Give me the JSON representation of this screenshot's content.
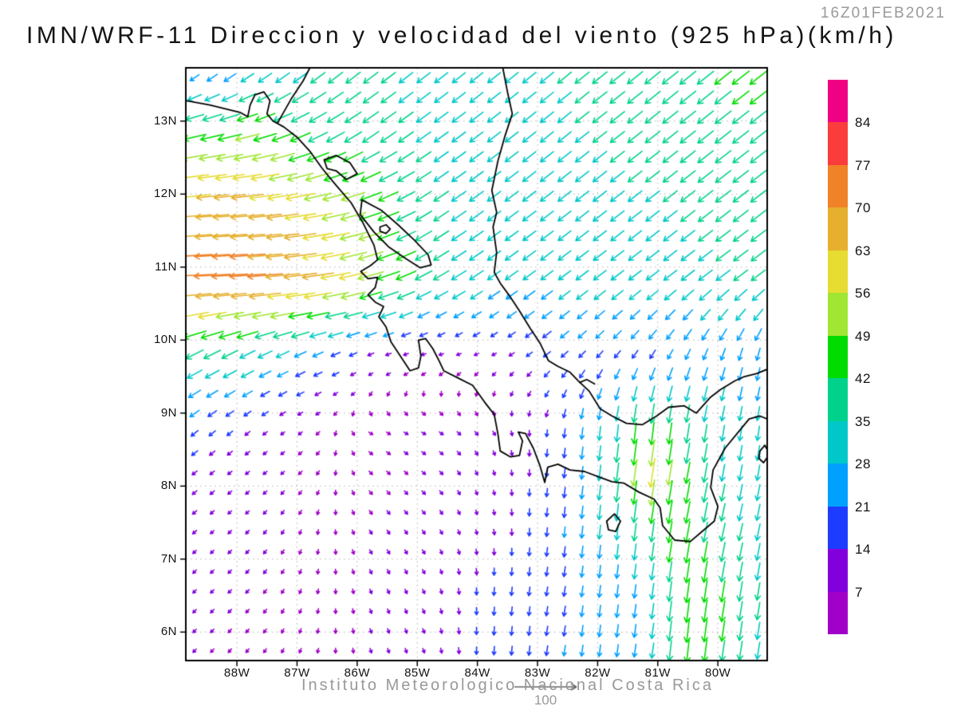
{
  "header": {
    "timestamp": "16Z01FEB2021",
    "title": "IMN/WRF-11 Direccion y velocidad del viento (925 hPa)(km/h)"
  },
  "footer": {
    "credit": "Instituto Meteorologico Nacional Costa Rica",
    "reference_vector": {
      "label": "100",
      "speed_kmh": 100
    }
  },
  "axes": {
    "lat_ticks": [
      {
        "value": 13,
        "label": "13N"
      },
      {
        "value": 12,
        "label": "12N"
      },
      {
        "value": 11,
        "label": "11N"
      },
      {
        "value": 10,
        "label": "10N"
      },
      {
        "value": 9,
        "label": "9N"
      },
      {
        "value": 8,
        "label": "8N"
      },
      {
        "value": 7,
        "label": "7N"
      },
      {
        "value": 6,
        "label": "6N"
      }
    ],
    "lon_ticks": [
      {
        "value": -88,
        "label": "88W"
      },
      {
        "value": -87,
        "label": "87W"
      },
      {
        "value": -86,
        "label": "86W"
      },
      {
        "value": -85,
        "label": "85W"
      },
      {
        "value": -84,
        "label": "84W"
      },
      {
        "value": -83,
        "label": "83W"
      },
      {
        "value": -82,
        "label": "82W"
      },
      {
        "value": -81,
        "label": "81W"
      },
      {
        "value": -80,
        "label": "80W"
      }
    ]
  },
  "colorbar": {
    "levels": [
      84,
      77,
      70,
      63,
      56,
      49,
      42,
      35,
      28,
      21,
      14,
      7
    ],
    "colors_top_to_bottom": [
      "#F00082",
      "#FA3C3C",
      "#F08228",
      "#E6AF2D",
      "#E6DC32",
      "#A0E632",
      "#00DC00",
      "#00D28C",
      "#00C8C8",
      "#00A0FF",
      "#1E3CFF",
      "#8200DC",
      "#A000C8"
    ]
  },
  "chart_data": {
    "type": "vector_field_map",
    "title": "IMN/WRF-11 Direccion y velocidad del viento (925 hPa)(km/h)",
    "valid_time": "16Z01FEB2021",
    "units": "km/h",
    "level": "925 hPa",
    "lon_range": [
      -88.85,
      -79.18
    ],
    "lat_range": [
      5.61,
      13.73
    ],
    "speed_bins_kmh": [
      7,
      14,
      21,
      28,
      35,
      42,
      49,
      56,
      63,
      70,
      77,
      84
    ],
    "grid_lons": [
      -88.8,
      -87.8,
      -86.8,
      -85.8,
      -84.8,
      -83.8,
      -82.8,
      -81.8,
      -81.2,
      -80.6,
      -79.8,
      -79.0
    ],
    "grid_lats": [
      13.8,
      12.8,
      11.8,
      10.8,
      9.8,
      8.8,
      8.2,
      7.4,
      6.6,
      5.6
    ],
    "uv": [
      [
        [
          -10,
          -12
        ],
        [
          -20,
          -18
        ],
        [
          -26,
          -22
        ],
        [
          -28,
          -22
        ],
        [
          -26,
          -20
        ],
        [
          -25,
          -20
        ],
        [
          -27,
          -22
        ],
        [
          -30,
          -24
        ],
        [
          -31,
          -25
        ],
        [
          -32,
          -26
        ],
        [
          -34,
          -27
        ],
        [
          -34,
          -27
        ]
      ],
      [
        [
          -45,
          -10
        ],
        [
          -48,
          -12
        ],
        [
          -38,
          -18
        ],
        [
          -32,
          -22
        ],
        [
          -28,
          -20
        ],
        [
          -26,
          -20
        ],
        [
          -26,
          -21
        ],
        [
          -28,
          -22
        ],
        [
          -29,
          -23
        ],
        [
          -30,
          -24
        ],
        [
          -32,
          -25
        ],
        [
          -32,
          -25
        ]
      ],
      [
        [
          -66,
          -5
        ],
        [
          -67,
          -6
        ],
        [
          -60,
          -10
        ],
        [
          -46,
          -15
        ],
        [
          -30,
          -20
        ],
        [
          -27,
          -20
        ],
        [
          -26,
          -20
        ],
        [
          -27,
          -21
        ],
        [
          -27,
          -21
        ],
        [
          -28,
          -22
        ],
        [
          -30,
          -23
        ],
        [
          -30,
          -23
        ]
      ],
      [
        [
          -75,
          -3
        ],
        [
          -73,
          -5
        ],
        [
          -65,
          -8
        ],
        [
          -52,
          -14
        ],
        [
          -32,
          -18
        ],
        [
          -26,
          -18
        ],
        [
          -24,
          -18
        ],
        [
          -25,
          -19
        ],
        [
          -25,
          -19
        ],
        [
          -26,
          -20
        ],
        [
          -28,
          -21
        ],
        [
          -28,
          -21
        ]
      ],
      [
        [
          -35,
          -18
        ],
        [
          -30,
          -15
        ],
        [
          -22,
          -10
        ],
        [
          -12,
          -5
        ],
        [
          -8,
          -2
        ],
        [
          -8,
          -4
        ],
        [
          -14,
          -11
        ],
        [
          -12,
          -14
        ],
        [
          -11,
          -16
        ],
        [
          -10,
          -20
        ],
        [
          -8,
          -24
        ],
        [
          -6,
          -25
        ]
      ],
      [
        [
          -15,
          -12
        ],
        [
          -10,
          -8
        ],
        [
          -6,
          -4
        ],
        [
          5,
          -3
        ],
        [
          7,
          -4
        ],
        [
          5,
          -6
        ],
        [
          -2,
          -14
        ],
        [
          -3,
          -30
        ],
        [
          -5,
          -45
        ],
        [
          -6,
          -40
        ],
        [
          -5,
          -30
        ],
        [
          -4,
          -28
        ]
      ],
      [
        [
          -10,
          -8
        ],
        [
          -8,
          -6
        ],
        [
          -4,
          -4
        ],
        [
          4,
          -4
        ],
        [
          6,
          -5
        ],
        [
          3,
          -8
        ],
        [
          -2,
          -16
        ],
        [
          -4,
          -34
        ],
        [
          -9,
          -62
        ],
        [
          -8,
          -44
        ],
        [
          -6,
          -32
        ],
        [
          -5,
          -30
        ]
      ],
      [
        [
          -8,
          -7
        ],
        [
          -6,
          -6
        ],
        [
          -2,
          -6
        ],
        [
          4,
          -6
        ],
        [
          5,
          -7
        ],
        [
          2,
          -10
        ],
        [
          -2,
          -18
        ],
        [
          -3,
          -30
        ],
        [
          -5,
          -38
        ],
        [
          -8,
          -45
        ],
        [
          -8,
          -35
        ],
        [
          -6,
          -32
        ]
      ],
      [
        [
          -6,
          -6
        ],
        [
          -5,
          -5
        ],
        [
          -2,
          -6
        ],
        [
          3,
          -7
        ],
        [
          4,
          -8
        ],
        [
          -1,
          -16
        ],
        [
          -3,
          -18
        ],
        [
          -3,
          -25
        ],
        [
          -4,
          -28
        ],
        [
          -6,
          -46
        ],
        [
          -7,
          -42
        ],
        [
          -5,
          -30
        ]
      ],
      [
        [
          -5,
          -5
        ],
        [
          -4,
          -5
        ],
        [
          -2,
          -6
        ],
        [
          2,
          -7
        ],
        [
          3,
          -8
        ],
        [
          -1,
          -17
        ],
        [
          -3,
          -20
        ],
        [
          -3,
          -24
        ],
        [
          -4,
          -26
        ],
        [
          -5,
          -48
        ],
        [
          -6,
          -40
        ],
        [
          -5,
          -30
        ]
      ]
    ],
    "geo": {
      "pacific_coast": [
        [
          -88.85,
          13.28
        ],
        [
          -88.45,
          13.22
        ],
        [
          -88.1,
          13.15
        ],
        [
          -87.95,
          13.12
        ],
        [
          -87.82,
          13.06
        ],
        [
          -87.78,
          13.22
        ],
        [
          -87.7,
          13.36
        ],
        [
          -87.55,
          13.4
        ],
        [
          -87.45,
          13.28
        ],
        [
          -87.5,
          13.1
        ],
        [
          -87.4,
          13.0
        ],
        [
          -87.22,
          12.92
        ],
        [
          -87.0,
          12.78
        ],
        [
          -86.78,
          12.58
        ],
        [
          -86.58,
          12.35
        ],
        [
          -86.38,
          12.15
        ],
        [
          -86.1,
          11.88
        ],
        [
          -85.9,
          11.6
        ],
        [
          -85.72,
          11.3
        ],
        [
          -85.66,
          11.1
        ],
        [
          -85.78,
          11.02
        ],
        [
          -85.94,
          10.94
        ],
        [
          -85.82,
          10.84
        ],
        [
          -85.66,
          10.86
        ],
        [
          -85.7,
          10.72
        ],
        [
          -85.82,
          10.62
        ],
        [
          -85.7,
          10.52
        ],
        [
          -85.56,
          10.46
        ],
        [
          -85.64,
          10.32
        ],
        [
          -85.52,
          10.18
        ],
        [
          -85.44,
          9.98
        ],
        [
          -85.28,
          9.78
        ],
        [
          -85.12,
          9.58
        ],
        [
          -84.98,
          9.62
        ],
        [
          -84.94,
          9.78
        ],
        [
          -84.98,
          10.0
        ],
        [
          -84.86,
          10.02
        ],
        [
          -84.74,
          9.88
        ],
        [
          -84.64,
          9.72
        ],
        [
          -84.56,
          9.58
        ],
        [
          -84.32,
          9.48
        ],
        [
          -84.08,
          9.38
        ],
        [
          -83.88,
          9.15
        ],
        [
          -83.72,
          8.98
        ],
        [
          -83.66,
          8.72
        ],
        [
          -83.62,
          8.48
        ],
        [
          -83.45,
          8.4
        ],
        [
          -83.3,
          8.42
        ],
        [
          -83.25,
          8.62
        ],
        [
          -83.32,
          8.74
        ],
        [
          -83.2,
          8.72
        ],
        [
          -83.07,
          8.52
        ],
        [
          -82.96,
          8.28
        ],
        [
          -82.88,
          8.05
        ],
        [
          -82.83,
          8.26
        ],
        [
          -82.66,
          8.3
        ],
        [
          -82.46,
          8.22
        ],
        [
          -82.22,
          8.2
        ],
        [
          -81.96,
          8.12
        ],
        [
          -81.76,
          8.06
        ],
        [
          -81.56,
          8.04
        ],
        [
          -81.32,
          7.92
        ],
        [
          -81.06,
          7.82
        ],
        [
          -80.96,
          7.7
        ],
        [
          -80.92,
          7.46
        ],
        [
          -80.72,
          7.26
        ],
        [
          -80.46,
          7.24
        ],
        [
          -80.26,
          7.38
        ],
        [
          -80.06,
          7.52
        ],
        [
          -80.0,
          7.72
        ],
        [
          -80.12,
          7.98
        ],
        [
          -80.08,
          8.22
        ],
        [
          -79.88,
          8.52
        ],
        [
          -79.62,
          8.78
        ],
        [
          -79.48,
          8.92
        ],
        [
          -79.3,
          8.96
        ],
        [
          -79.18,
          8.92
        ]
      ],
      "caribbean_coast": [
        [
          -83.58,
          13.74
        ],
        [
          -83.5,
          13.4
        ],
        [
          -83.42,
          13.1
        ],
        [
          -83.54,
          12.8
        ],
        [
          -83.66,
          12.45
        ],
        [
          -83.76,
          12.05
        ],
        [
          -83.68,
          11.75
        ],
        [
          -83.74,
          11.55
        ],
        [
          -83.68,
          11.2
        ],
        [
          -83.72,
          10.93
        ],
        [
          -83.62,
          10.78
        ],
        [
          -83.46,
          10.6
        ],
        [
          -83.3,
          10.4
        ],
        [
          -83.12,
          10.16
        ],
        [
          -82.96,
          9.96
        ],
        [
          -82.82,
          9.72
        ],
        [
          -82.66,
          9.64
        ],
        [
          -82.46,
          9.56
        ],
        [
          -82.32,
          9.44
        ],
        [
          -82.14,
          9.3
        ],
        [
          -81.96,
          9.06
        ],
        [
          -81.76,
          8.96
        ],
        [
          -81.52,
          8.86
        ],
        [
          -81.26,
          8.84
        ],
        [
          -81.02,
          8.96
        ],
        [
          -80.82,
          9.08
        ],
        [
          -80.56,
          9.1
        ],
        [
          -80.36,
          9.0
        ],
        [
          -80.12,
          9.22
        ],
        [
          -79.96,
          9.32
        ],
        [
          -79.72,
          9.44
        ],
        [
          -79.56,
          9.5
        ],
        [
          -79.36,
          9.54
        ],
        [
          -79.18,
          9.6
        ]
      ],
      "border_honduras_nicaragua": [
        [
          -87.32,
          12.98
        ],
        [
          -87.1,
          13.3
        ],
        [
          -86.9,
          13.55
        ],
        [
          -86.78,
          13.74
        ]
      ],
      "lake_managua": [
        [
          -86.55,
          12.47
        ],
        [
          -86.35,
          12.53
        ],
        [
          -86.12,
          12.43
        ],
        [
          -86.0,
          12.28
        ],
        [
          -86.18,
          12.2
        ],
        [
          -86.35,
          12.32
        ],
        [
          -86.5,
          12.35
        ],
        [
          -86.55,
          12.47
        ]
      ],
      "lake_nicaragua": [
        [
          -85.92,
          11.92
        ],
        [
          -85.6,
          11.78
        ],
        [
          -85.32,
          11.58
        ],
        [
          -85.05,
          11.37
        ],
        [
          -84.82,
          11.17
        ],
        [
          -84.77,
          11.03
        ],
        [
          -84.95,
          10.99
        ],
        [
          -85.2,
          11.12
        ],
        [
          -85.48,
          11.28
        ],
        [
          -85.72,
          11.48
        ],
        [
          -85.95,
          11.72
        ],
        [
          -85.92,
          11.92
        ]
      ],
      "isla_ometepe": [
        [
          -85.62,
          11.55
        ],
        [
          -85.52,
          11.58
        ],
        [
          -85.45,
          11.52
        ],
        [
          -85.52,
          11.46
        ],
        [
          -85.62,
          11.49
        ],
        [
          -85.62,
          11.55
        ]
      ],
      "isla_coiba": [
        [
          -81.85,
          7.52
        ],
        [
          -81.72,
          7.62
        ],
        [
          -81.62,
          7.52
        ],
        [
          -81.7,
          7.38
        ],
        [
          -81.82,
          7.4
        ],
        [
          -81.85,
          7.52
        ]
      ],
      "pearl_islands": [
        [
          -79.3,
          8.48
        ],
        [
          -79.22,
          8.56
        ],
        [
          -79.14,
          8.44
        ],
        [
          -79.24,
          8.32
        ],
        [
          -79.32,
          8.38
        ],
        [
          -79.3,
          8.48
        ]
      ],
      "bocas_islands": [
        [
          -82.3,
          9.42
        ],
        [
          -82.18,
          9.46
        ],
        [
          -82.05,
          9.4
        ]
      ]
    }
  }
}
